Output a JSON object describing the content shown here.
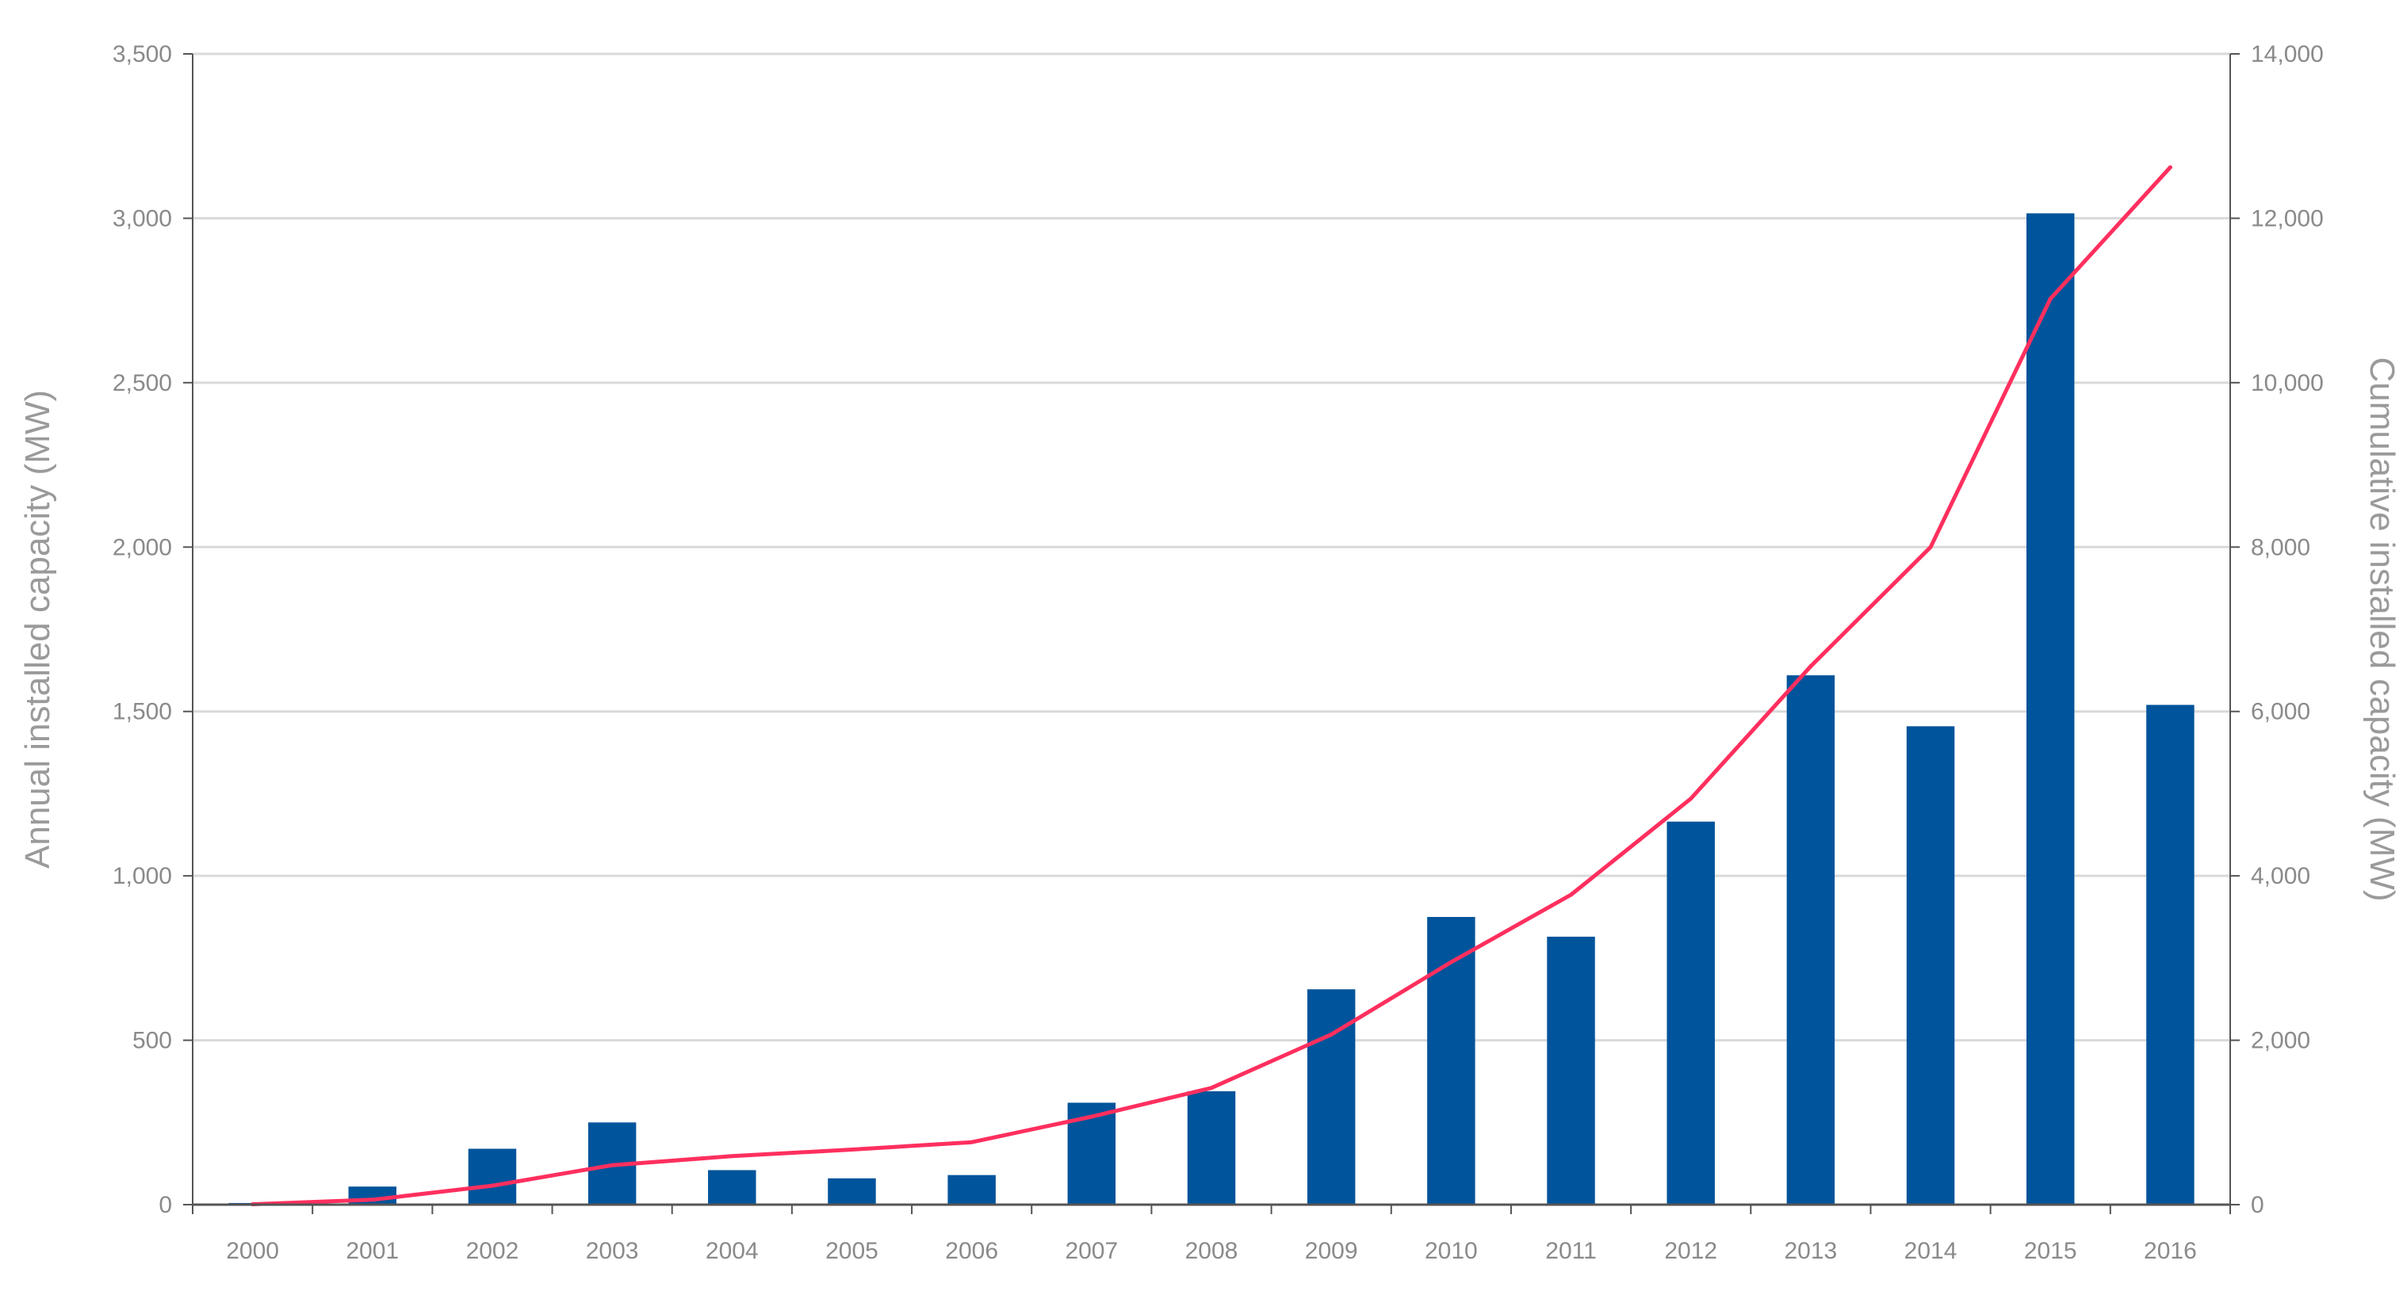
{
  "chart_data": {
    "type": "bar",
    "categories": [
      "2000",
      "2001",
      "2002",
      "2003",
      "2004",
      "2005",
      "2006",
      "2007",
      "2008",
      "2009",
      "2010",
      "2011",
      "2012",
      "2013",
      "2014",
      "2015",
      "2016"
    ],
    "series": [
      {
        "type": "bar",
        "axis": "left",
        "values": [
          5,
          55,
          170,
          250,
          105,
          80,
          90,
          310,
          345,
          655,
          875,
          815,
          1165,
          1610,
          1455,
          3015,
          1520
        ]
      },
      {
        "type": "line",
        "axis": "right",
        "values": [
          5,
          60,
          230,
          480,
          590,
          670,
          760,
          1070,
          1420,
          2070,
          2950,
          3770,
          4940,
          6550,
          8000,
          11020,
          12620
        ]
      }
    ],
    "title": "",
    "xlabel": "",
    "ylabel": "Annual installed capacity (MW)",
    "y2label": "Cumulative installed capacity (MW)",
    "ylim": [
      0,
      3500
    ],
    "y2lim": [
      0,
      14000
    ],
    "yticks": [
      "0",
      "500",
      "1,000",
      "1,500",
      "2,000",
      "2,500",
      "3,000",
      "3,500"
    ],
    "y2ticks": [
      "0",
      "2,000",
      "4,000",
      "6,000",
      "8,000",
      "10,000",
      "12,000",
      "14,000"
    ],
    "grid": true,
    "legend": "none",
    "colors": {
      "bar": "#00549b",
      "line": "#ff2f5e",
      "grid": "#d9d9d9",
      "axis": "#555555",
      "text": "#8a8a8a"
    }
  }
}
